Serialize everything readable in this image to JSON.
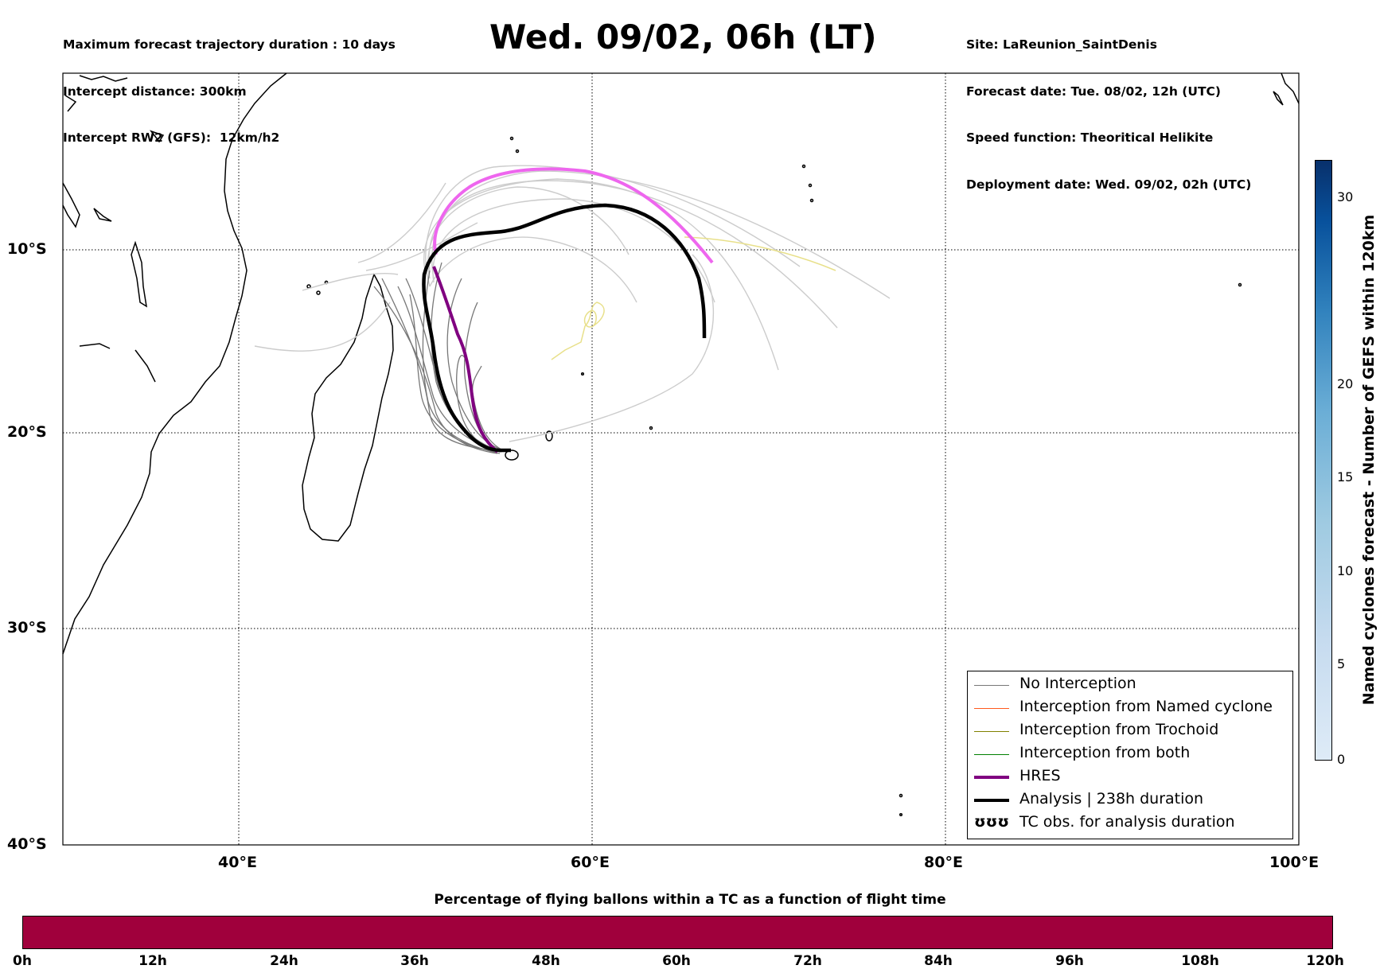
{
  "header": {
    "left_lines": [
      "Maximum forecast trajectory duration : 10 days",
      "Intercept distance: 300km",
      "Intercept RW2 (GFS):  12km/h2"
    ],
    "title": "Wed. 09/02, 06h (LT)",
    "right_lines": [
      "Site: LaReunion_SaintDenis",
      "Forecast date: Tue. 08/02, 12h (UTC)",
      "Speed function: Theoritical Helikite",
      "Deployment date: Wed. 09/02, 02h (UTC)"
    ]
  },
  "map": {
    "lat_labels": [
      "10°S",
      "20°S",
      "30°S",
      "40°S"
    ],
    "lon_labels": [
      "40°E",
      "60°E",
      "80°E",
      "100°E"
    ],
    "extent": {
      "lon_min": 30,
      "lon_max": 100,
      "lat_min": -40,
      "lat_max": -1
    },
    "grid": "dotted",
    "colors": {
      "no_interception": "#777777",
      "named_cyclone": "#ff5a1e",
      "trochoid": "#808000",
      "both": "#008000",
      "hres": "#800080",
      "analysis": "#000000",
      "tc_obs": "#f0e68c",
      "hres_upper": "#ee66ee",
      "light_traj": "#cccccc"
    }
  },
  "legend": {
    "items": [
      {
        "label": "No Interception",
        "color": "#777777",
        "width": 1.2
      },
      {
        "label": "Interception from Named cyclone",
        "color": "#ff5a1e",
        "width": 1.2
      },
      {
        "label": "Interception from Trochoid",
        "color": "#808000",
        "width": 1.2
      },
      {
        "label": "Interception from both",
        "color": "#008000",
        "width": 1.2
      },
      {
        "label": "HRES",
        "color": "#800080",
        "width": 4
      },
      {
        "label": "Analysis | 238h duration",
        "color": "#000000",
        "width": 4
      },
      {
        "label": "TC obs. for analysis duration",
        "symbol": "ʊʊʊ"
      }
    ]
  },
  "colorbar_right": {
    "title": "Named cyclones forecast - Number of GEFS within 120km",
    "ticks": [
      "0",
      "5",
      "10",
      "15",
      "20",
      "30"
    ],
    "range": [
      0,
      32
    ]
  },
  "colorbar_bottom": {
    "title": "Percentage of flying ballons within a TC as a function of flight time",
    "ticks": [
      "0h",
      "12h",
      "24h",
      "36h",
      "48h",
      "60h",
      "72h",
      "84h",
      "96h",
      "108h",
      "120h"
    ],
    "color": "#a0003c"
  }
}
